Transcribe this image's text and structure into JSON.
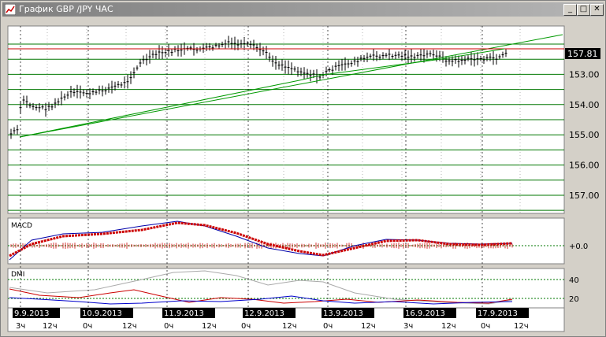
{
  "window": {
    "title": "График GBP /JPY  ЧАС",
    "buttons": {
      "minimize": "_",
      "maximize": "□",
      "close": "✕"
    }
  },
  "colors": {
    "background": "#ffffff",
    "grid": "#007700",
    "price_line": "#cc0000",
    "trend_line": "#009900",
    "macd_line": "#0000aa",
    "macd_signal": "#cc0000",
    "dmi_adx": "#aaaaaa",
    "dmi_plus": "#cc0000",
    "dmi_minus": "#0000cc"
  },
  "price_panel": {
    "current_price": "157.81",
    "y_ticks": [
      "157.00",
      "156.00",
      "155.00",
      "154.00",
      "153.00"
    ]
  },
  "macd_panel": {
    "label": "MACD",
    "level_label": "+0.0"
  },
  "dmi_panel": {
    "label": "DMI",
    "level_labels": [
      "40",
      "20"
    ]
  },
  "x_axis": {
    "dates": [
      "9.9.2013",
      "10.9.2013",
      "11.9.2013",
      "12.9.2013",
      "13.9.2013",
      "16.9.2013",
      "17.9.2013"
    ],
    "hour_labels": [
      "3ч",
      "12ч",
      "0ч",
      "12ч",
      "0ч",
      "12ч",
      "0ч",
      "12ч",
      "0ч",
      "12ч",
      "3ч",
      "12ч",
      "0ч",
      "12ч"
    ]
  },
  "chart_data": {
    "type": "line",
    "title": "График GBP /JPY  ЧАС",
    "x": [
      "9.9.2013",
      "10.9.2013",
      "11.9.2013",
      "12.9.2013",
      "13.9.2013",
      "16.9.2013",
      "17.9.2013"
    ],
    "series": [
      {
        "values": [
          155.2,
          156.4,
          157.9,
          157.1,
          157.5,
          157.5,
          157.8
        ]
      }
    ],
    "ylim": [
      152.4,
      158.6
    ],
    "y_ticks": [
      153,
      154,
      155,
      156,
      157
    ],
    "current_price": 157.81,
    "grid": true
  }
}
